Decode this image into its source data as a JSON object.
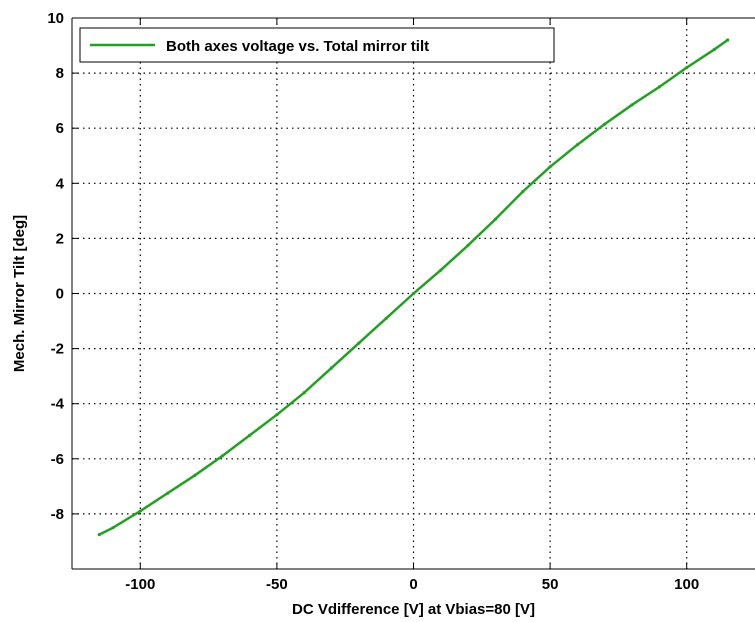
{
  "chart_data": {
    "type": "line",
    "xlabel": "DC Vdifference [V] at Vbias=80 [V]",
    "ylabel": "Mech. Mirror Tilt [deg]",
    "xlim": [
      -125,
      125
    ],
    "ylim": [
      -10,
      10
    ],
    "xticks": [
      -100,
      -50,
      0,
      50,
      100
    ],
    "xtick_labels": [
      "-100",
      "-50",
      "0",
      "50",
      "100"
    ],
    "yticks": [
      -8,
      -6,
      -4,
      -2,
      0,
      2,
      4,
      6,
      8,
      10
    ],
    "ytick_labels": [
      "-8",
      "-6",
      "-4",
      "-2",
      "0",
      "2",
      "4",
      "6",
      "8",
      "10"
    ],
    "grid": true,
    "legend_position": "top-left",
    "series": [
      {
        "name": "Both axes voltage vs. Total mirror tilt",
        "color": "#22a022",
        "x": [
          -115,
          -110,
          -100,
          -90,
          -80,
          -70,
          -60,
          -50,
          -40,
          -30,
          -20,
          -10,
          0,
          10,
          20,
          30,
          40,
          50,
          60,
          70,
          80,
          90,
          100,
          110,
          115
        ],
        "y": [
          -8.75,
          -8.5,
          -7.9,
          -7.25,
          -6.6,
          -5.9,
          -5.15,
          -4.4,
          -3.6,
          -2.7,
          -1.8,
          -0.9,
          0.0,
          0.85,
          1.75,
          2.7,
          3.7,
          4.6,
          5.4,
          6.15,
          6.85,
          7.5,
          8.2,
          8.85,
          9.2
        ]
      }
    ]
  }
}
